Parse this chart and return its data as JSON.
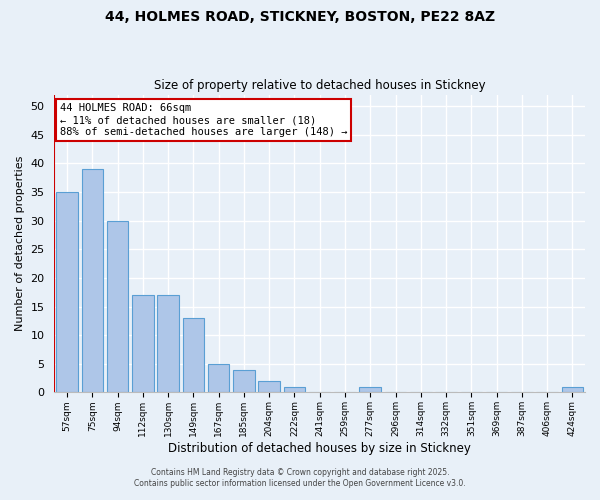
{
  "title1": "44, HOLMES ROAD, STICKNEY, BOSTON, PE22 8AZ",
  "title2": "Size of property relative to detached houses in Stickney",
  "xlabel": "Distribution of detached houses by size in Stickney",
  "ylabel": "Number of detached properties",
  "bar_labels": [
    "57sqm",
    "75sqm",
    "94sqm",
    "112sqm",
    "130sqm",
    "149sqm",
    "167sqm",
    "185sqm",
    "204sqm",
    "222sqm",
    "241sqm",
    "259sqm",
    "277sqm",
    "296sqm",
    "314sqm",
    "332sqm",
    "351sqm",
    "369sqm",
    "387sqm",
    "406sqm",
    "424sqm"
  ],
  "bar_values": [
    35,
    39,
    30,
    17,
    17,
    13,
    5,
    4,
    2,
    1,
    0,
    0,
    1,
    0,
    0,
    0,
    0,
    0,
    0,
    0,
    1
  ],
  "bar_color": "#aec6e8",
  "bar_edge_color": "#5a9fd4",
  "marker_line_color": "#cc0000",
  "ylim": [
    0,
    52
  ],
  "yticks": [
    0,
    5,
    10,
    15,
    20,
    25,
    30,
    35,
    40,
    45,
    50
  ],
  "annotation_title": "44 HOLMES ROAD: 66sqm",
  "annotation_line1": "← 11% of detached houses are smaller (18)",
  "annotation_line2": "88% of semi-detached houses are larger (148) →",
  "annotation_box_color": "#ffffff",
  "annotation_box_edge": "#cc0000",
  "footer1": "Contains HM Land Registry data © Crown copyright and database right 2025.",
  "footer2": "Contains public sector information licensed under the Open Government Licence v3.0.",
  "bg_color": "#e8f0f8",
  "plot_bg_color": "#e8f0f8",
  "grid_color": "#ffffff"
}
